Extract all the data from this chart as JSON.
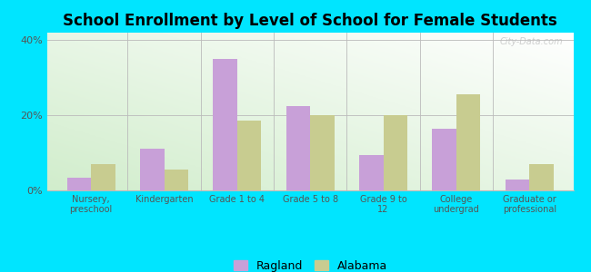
{
  "title": "School Enrollment by Level of School for Female Students",
  "categories": [
    "Nursery,\npreschool",
    "Kindergarten",
    "Grade 1 to 4",
    "Grade 5 to 8",
    "Grade 9 to\n12",
    "College\nundergrad",
    "Graduate or\nprofessional"
  ],
  "ragland": [
    3.5,
    11.0,
    35.0,
    22.5,
    9.5,
    16.5,
    3.0
  ],
  "alabama": [
    7.0,
    5.5,
    18.5,
    20.0,
    20.0,
    25.5,
    7.0
  ],
  "ragland_color": "#c8a0d8",
  "alabama_color": "#c8cc90",
  "outer_background": "#00e5ff",
  "title_fontsize": 12,
  "ylabel_ticks": [
    0,
    20,
    40
  ],
  "ylabel_labels": [
    "0%",
    "20%",
    "40%"
  ],
  "ylim": [
    0,
    42
  ],
  "watermark": "City-Data.com"
}
